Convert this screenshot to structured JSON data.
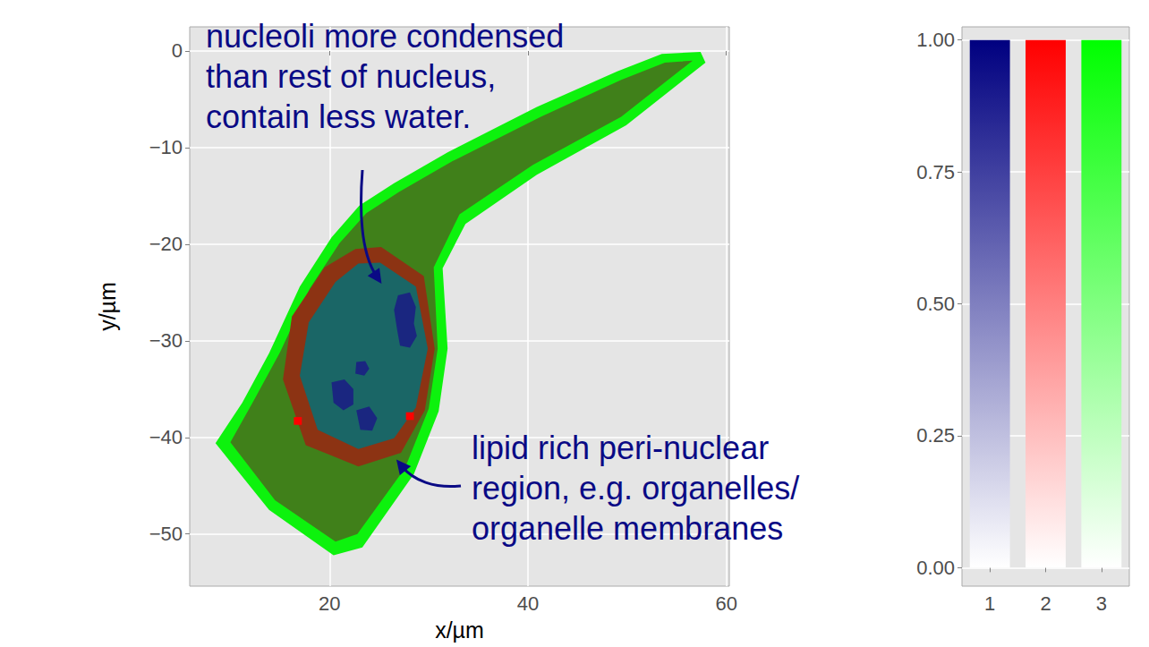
{
  "chart_data": [
    {
      "type": "image",
      "xlabel": "x/µm",
      "ylabel": "y/µm",
      "xlim": [
        5.9,
        60.3
      ],
      "ylim": [
        -55.4,
        2.5
      ],
      "xticks": [
        20,
        40,
        60
      ],
      "yticks": [
        {
          "value": -50,
          "label": "−50"
        },
        {
          "value": -40,
          "label": "−40"
        },
        {
          "value": -30,
          "label": "−30"
        },
        {
          "value": -20,
          "label": "−20"
        },
        {
          "value": -10,
          "label": "−10"
        },
        0
      ],
      "grid": true,
      "regions": [
        {
          "polygon": [
            [
              57.4,
              -0.1
            ],
            [
              57.9,
              -1.2
            ],
            [
              49.9,
              -7.7
            ],
            [
              40.9,
              -12.8
            ],
            [
              33.7,
              -17.9
            ],
            [
              31.4,
              -22.5
            ],
            [
              31.9,
              -30.8
            ],
            [
              31.0,
              -37.3
            ],
            [
              28.5,
              -43.8
            ],
            [
              23.3,
              -51.4
            ],
            [
              20.4,
              -52.2
            ],
            [
              13.9,
              -47.5
            ],
            [
              8.5,
              -40.6
            ],
            [
              11.2,
              -36.4
            ],
            [
              13.9,
              -31.3
            ],
            [
              17.0,
              -24.4
            ],
            [
              20.2,
              -19.3
            ],
            [
              23.0,
              -16.0
            ],
            [
              26.5,
              -13.7
            ],
            [
              31.9,
              -10.5
            ],
            [
              40.9,
              -5.8
            ],
            [
              49.0,
              -2.1
            ],
            [
              53.5,
              -0.3
            ]
          ],
          "components": [
            0.1,
            0.05,
            0.95
          ]
        },
        {
          "polygon": [
            [
              56.6,
              -1.0
            ],
            [
              49.4,
              -6.8
            ],
            [
              40.5,
              -11.8
            ],
            [
              33.1,
              -16.9
            ],
            [
              30.5,
              -22.4
            ],
            [
              30.9,
              -30.8
            ],
            [
              30.0,
              -37.0
            ],
            [
              27.6,
              -43.2
            ],
            [
              22.8,
              -50.0
            ],
            [
              20.6,
              -50.8
            ],
            [
              14.5,
              -46.5
            ],
            [
              10.0,
              -40.5
            ],
            [
              12.3,
              -36.3
            ],
            [
              15.0,
              -31.2
            ],
            [
              18.0,
              -24.6
            ],
            [
              21.0,
              -19.9
            ],
            [
              23.7,
              -16.8
            ],
            [
              27.0,
              -14.6
            ],
            [
              32.4,
              -11.4
            ],
            [
              41.3,
              -6.8
            ],
            [
              49.4,
              -3.0
            ],
            [
              53.8,
              -1.2
            ]
          ],
          "components": [
            0.2,
            0.25,
            0.5
          ]
        },
        {
          "polygon": [
            [
              25.2,
              -20.3
            ],
            [
              29.5,
              -23.3
            ],
            [
              30.6,
              -30.8
            ],
            [
              29.6,
              -37.2
            ],
            [
              27.2,
              -41.6
            ],
            [
              22.9,
              -43.0
            ],
            [
              17.6,
              -40.8
            ],
            [
              15.3,
              -34.0
            ],
            [
              16.2,
              -27.5
            ],
            [
              19.5,
              -22.4
            ],
            [
              22.6,
              -20.5
            ]
          ],
          "components": [
            0.15,
            0.55,
            0.2
          ]
        },
        {
          "polygon": [
            [
              25.1,
              -21.9
            ],
            [
              28.7,
              -24.4
            ],
            [
              29.9,
              -30.8
            ],
            [
              28.7,
              -36.9
            ],
            [
              26.5,
              -40.1
            ],
            [
              22.9,
              -41.2
            ],
            [
              18.8,
              -39.2
            ],
            [
              17.0,
              -33.6
            ],
            [
              17.9,
              -28.1
            ],
            [
              20.6,
              -23.9
            ],
            [
              22.9,
              -22.0
            ]
          ],
          "components": [
            0.8,
            0.1,
            0.4
          ]
        },
        {
          "polygon": [
            [
              26.9,
              -25.3
            ],
            [
              28.1,
              -25.0
            ],
            [
              28.7,
              -26.5
            ],
            [
              28.5,
              -28.2
            ],
            [
              28.8,
              -29.5
            ],
            [
              28.1,
              -30.7
            ],
            [
              27.1,
              -30.5
            ],
            [
              26.8,
              -28.8
            ],
            [
              26.5,
              -26.8
            ]
          ],
          "components": [
            1.0,
            0.1,
            0.15
          ]
        },
        {
          "polygon": [
            [
              22.7,
              -32.2
            ],
            [
              23.6,
              -32.1
            ],
            [
              24.0,
              -32.9
            ],
            [
              23.5,
              -33.6
            ],
            [
              22.6,
              -33.4
            ]
          ],
          "components": [
            1.0,
            0.1,
            0.15
          ]
        },
        {
          "polygon": [
            [
              20.2,
              -34.3
            ],
            [
              21.5,
              -34.0
            ],
            [
              22.4,
              -35.0
            ],
            [
              22.4,
              -36.6
            ],
            [
              21.4,
              -37.2
            ],
            [
              20.4,
              -36.4
            ]
          ],
          "components": [
            1.0,
            0.1,
            0.15
          ]
        },
        {
          "polygon": [
            [
              22.7,
              -37.2
            ],
            [
              24.0,
              -36.8
            ],
            [
              24.8,
              -38.0
            ],
            [
              24.3,
              -39.3
            ],
            [
              23.1,
              -39.2
            ]
          ],
          "components": [
            1.0,
            0.1,
            0.15
          ]
        },
        {
          "polygon": [
            [
              16.4,
              -37.9
            ],
            [
              17.2,
              -37.9
            ],
            [
              17.2,
              -38.7
            ],
            [
              16.4,
              -38.7
            ]
          ],
          "components": [
            0.0,
            1.0,
            0.0
          ]
        },
        {
          "polygon": [
            [
              27.7,
              -37.4
            ],
            [
              28.5,
              -37.4
            ],
            [
              28.5,
              -38.2
            ],
            [
              27.7,
              -38.2
            ]
          ],
          "components": [
            0.0,
            1.0,
            0.0
          ]
        }
      ],
      "annotations": [
        {
          "lines": [
            "nucleoli more condensed",
            "than rest of nucleus,",
            "contain less water."
          ]
        },
        {
          "lines": [
            "lipid rich peri-nuclear",
            "region, e.g. organelles/",
            "organelle membranes"
          ]
        }
      ]
    },
    {
      "type": "colorbar",
      "categories": [
        "1",
        "2",
        "3"
      ],
      "colors": [
        "#000080",
        "#ff0000",
        "#00ff00"
      ],
      "range": [
        0,
        1
      ],
      "ylim": [
        -0.035,
        1.025
      ],
      "yticks": [
        {
          "value": 0,
          "label": "0.00"
        },
        {
          "value": 0.25,
          "label": "0.25"
        },
        {
          "value": 0.5,
          "label": "0.50"
        },
        {
          "value": 0.75,
          "label": "0.75"
        },
        {
          "value": 1,
          "label": "1.00"
        }
      ],
      "grid": true
    }
  ]
}
